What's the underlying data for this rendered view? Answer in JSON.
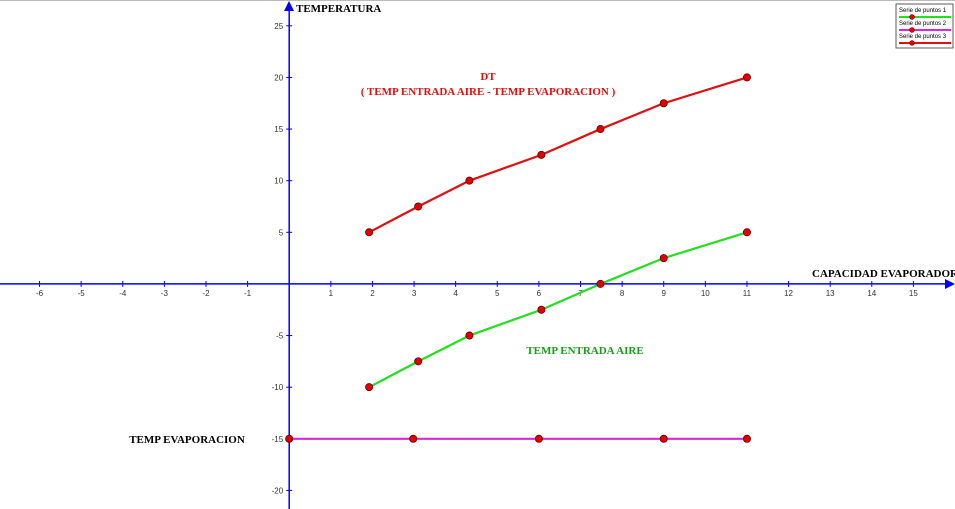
{
  "chart_data": {
    "type": "line",
    "x_label": "CAPACIDAD EVAPORADOR",
    "y_label": "TEMPERATURA",
    "annotations": [
      "DT",
      "( TEMP ENTRADA AIRE - TEMP EVAPORACION )",
      "TEMP ENTRADA AIRE",
      "TEMP EVAPORACION"
    ],
    "xlim": [
      -6.95,
      16
    ],
    "ylim": [
      -21.8,
      27.5
    ],
    "xticks": [
      -6,
      -5,
      -4,
      -3,
      -2,
      -1,
      1,
      2,
      3,
      4,
      5,
      6,
      7,
      8,
      9,
      10,
      11,
      12,
      13,
      14,
      15
    ],
    "yticks": [
      -20,
      -15,
      -10,
      -5,
      5,
      10,
      15,
      20,
      25
    ],
    "marker_color": "#e00000",
    "series": [
      {
        "name": "Serie de puntos 1",
        "color": "#22e01e",
        "x": [
          1.92,
          3.1,
          4.33,
          6.06,
          7.48,
          9.0,
          11
        ],
        "values": [
          -10,
          -7.5,
          -5,
          -2.5,
          0,
          2.5,
          5
        ]
      },
      {
        "name": "Serie de puntos 2",
        "color": "#d62ad6",
        "x": [
          0,
          2.98,
          6.0,
          9.0,
          11
        ],
        "values": [
          -15,
          -15,
          -15,
          -15,
          -15
        ]
      },
      {
        "name": "Serie de puntos 3",
        "color": "#e01010",
        "x": [
          1.92,
          3.1,
          4.33,
          6.06,
          7.48,
          9.0,
          11
        ],
        "values": [
          5,
          7.5,
          10,
          12.5,
          15,
          17.5,
          20
        ]
      }
    ]
  }
}
